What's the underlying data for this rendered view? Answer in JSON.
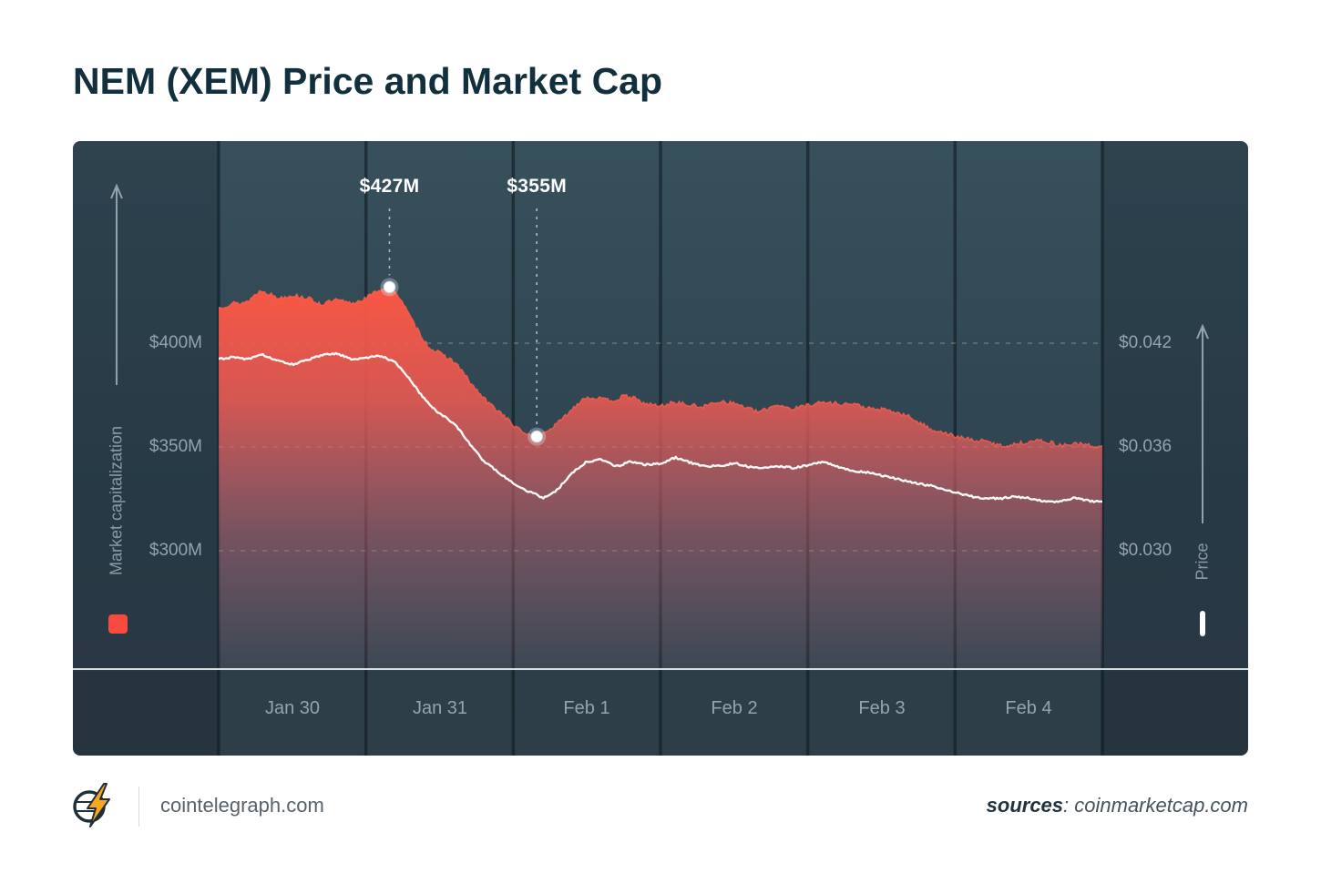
{
  "title": "NEM (XEM) Price and Market Cap",
  "footer": {
    "site": "cointelegraph.com",
    "sources_label": "sources",
    "sources_value": ": coinmarketcap.com"
  },
  "chart_data": {
    "type": "area",
    "x_unit": "days",
    "x_range": [
      0,
      6
    ],
    "x_ticklabels": [
      "Jan 30",
      "Jan 31",
      "Feb 1",
      "Feb 2",
      "Feb 3",
      "Feb 4"
    ],
    "grid": "dashed-horizontal",
    "legend_position": "bottom-corners",
    "left_axis": {
      "label": "Market capitalization",
      "unit": "USD millions",
      "ticks": [
        400,
        350,
        300
      ],
      "tick_labels": [
        "$400M",
        "$350M",
        "$300M"
      ]
    },
    "right_axis": {
      "label": "Price",
      "unit": "USD",
      "ticks": [
        0.042,
        0.036,
        0.03
      ],
      "tick_labels": [
        "$0.042",
        "$0.036",
        "$0.030"
      ]
    },
    "annotations": [
      {
        "text": "$427M",
        "x_day": 1.16,
        "value": 427,
        "series": "Market capitalization"
      },
      {
        "text": "$355M",
        "x_day": 2.16,
        "value": 355,
        "series": "Market capitalization"
      }
    ],
    "colors": {
      "area_top": "#ff5743",
      "accent_red": "#f84a3d",
      "price_line": "#ffffff",
      "background_top": "#37505c",
      "background_bottom": "#33434e",
      "title_text": "#122f3d",
      "axis_text": "#95a3ac"
    },
    "series": [
      {
        "name": "Market capitalization",
        "style": "area",
        "axis": "left",
        "color": "#ff5743",
        "points": [
          [
            0,
            419
          ],
          [
            0.1,
            421
          ],
          [
            0.2,
            420
          ],
          [
            0.3,
            424
          ],
          [
            0.4,
            421
          ],
          [
            0.5,
            423
          ],
          [
            0.6,
            422
          ],
          [
            0.7,
            419
          ],
          [
            0.8,
            421
          ],
          [
            0.9,
            420
          ],
          [
            1,
            422
          ],
          [
            1.08,
            425
          ],
          [
            1.16,
            427
          ],
          [
            1.24,
            421
          ],
          [
            1.32,
            411
          ],
          [
            1.42,
            400
          ],
          [
            1.52,
            394
          ],
          [
            1.62,
            389
          ],
          [
            1.72,
            380
          ],
          [
            1.82,
            373
          ],
          [
            1.92,
            367
          ],
          [
            2,
            361
          ],
          [
            2.08,
            357
          ],
          [
            2.16,
            355
          ],
          [
            2.26,
            359
          ],
          [
            2.36,
            366
          ],
          [
            2.48,
            372
          ],
          [
            2.58,
            374
          ],
          [
            2.7,
            372
          ],
          [
            2.8,
            374
          ],
          [
            2.9,
            372
          ],
          [
            3,
            371
          ],
          [
            3.1,
            373
          ],
          [
            3.2,
            371
          ],
          [
            3.3,
            370
          ],
          [
            3.4,
            372
          ],
          [
            3.5,
            370
          ],
          [
            3.6,
            369
          ],
          [
            3.7,
            368
          ],
          [
            3.8,
            369
          ],
          [
            3.9,
            368
          ],
          [
            4,
            370
          ],
          [
            4.1,
            371
          ],
          [
            4.2,
            370
          ],
          [
            4.3,
            369
          ],
          [
            4.4,
            368
          ],
          [
            4.5,
            367
          ],
          [
            4.6,
            365
          ],
          [
            4.7,
            363
          ],
          [
            4.8,
            361
          ],
          [
            4.9,
            359
          ],
          [
            5,
            356
          ],
          [
            5.1,
            354
          ],
          [
            5.2,
            353
          ],
          [
            5.3,
            352
          ],
          [
            5.4,
            353
          ],
          [
            5.5,
            354
          ],
          [
            5.6,
            352
          ],
          [
            5.7,
            351
          ],
          [
            5.8,
            352
          ],
          [
            5.9,
            351
          ],
          [
            6,
            350
          ]
        ]
      },
      {
        "name": "Price",
        "style": "line",
        "axis": "right",
        "color": "#ffffff",
        "points": [
          [
            0,
            0.0411
          ],
          [
            0.1,
            0.0412
          ],
          [
            0.2,
            0.0411
          ],
          [
            0.3,
            0.0414
          ],
          [
            0.4,
            0.041
          ],
          [
            0.5,
            0.0408
          ],
          [
            0.6,
            0.041
          ],
          [
            0.7,
            0.0412
          ],
          [
            0.8,
            0.0413
          ],
          [
            0.9,
            0.041
          ],
          [
            1,
            0.0412
          ],
          [
            1.1,
            0.0413
          ],
          [
            1.2,
            0.0409
          ],
          [
            1.3,
            0.0398
          ],
          [
            1.4,
            0.0388
          ],
          [
            1.5,
            0.038
          ],
          [
            1.6,
            0.0374
          ],
          [
            1.7,
            0.0362
          ],
          [
            1.8,
            0.0352
          ],
          [
            1.9,
            0.0346
          ],
          [
            2,
            0.034
          ],
          [
            2.1,
            0.0334
          ],
          [
            2.2,
            0.033
          ],
          [
            2.3,
            0.0336
          ],
          [
            2.4,
            0.0345
          ],
          [
            2.5,
            0.0351
          ],
          [
            2.6,
            0.0352
          ],
          [
            2.7,
            0.035
          ],
          [
            2.8,
            0.0352
          ],
          [
            2.9,
            0.035
          ],
          [
            3,
            0.0351
          ],
          [
            3.1,
            0.0354
          ],
          [
            3.2,
            0.0351
          ],
          [
            3.3,
            0.0349
          ],
          [
            3.4,
            0.035
          ],
          [
            3.5,
            0.0351
          ],
          [
            3.6,
            0.0348
          ],
          [
            3.7,
            0.0347
          ],
          [
            3.8,
            0.0348
          ],
          [
            3.9,
            0.0347
          ],
          [
            4,
            0.0349
          ],
          [
            4.1,
            0.0351
          ],
          [
            4.2,
            0.0349
          ],
          [
            4.3,
            0.0347
          ],
          [
            4.4,
            0.0346
          ],
          [
            4.5,
            0.0344
          ],
          [
            4.6,
            0.0342
          ],
          [
            4.7,
            0.034
          ],
          [
            4.8,
            0.0338
          ],
          [
            4.9,
            0.0336
          ],
          [
            5,
            0.0334
          ],
          [
            5.1,
            0.0332
          ],
          [
            5.2,
            0.033
          ],
          [
            5.3,
            0.0329
          ],
          [
            5.4,
            0.0331
          ],
          [
            5.5,
            0.033
          ],
          [
            5.6,
            0.0328
          ],
          [
            5.7,
            0.0329
          ],
          [
            5.8,
            0.033
          ],
          [
            5.9,
            0.0328
          ],
          [
            6,
            0.0327
          ]
        ]
      }
    ]
  }
}
